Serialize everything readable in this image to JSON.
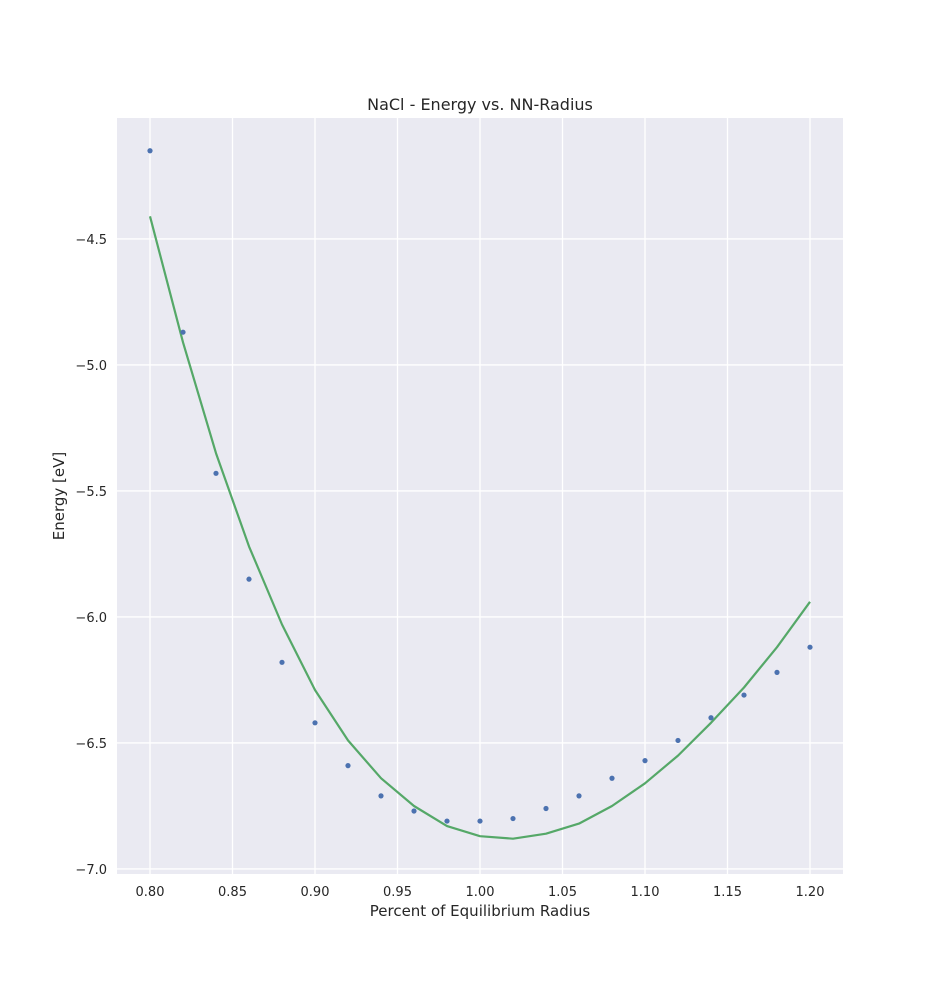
{
  "chart_data": {
    "type": "scatter",
    "title": "NaCl - Energy vs. NN-Radius",
    "xlabel": "Percent of Equilibrium Radius",
    "ylabel": "Energy [eV]",
    "xlim": [
      0.78,
      1.22
    ],
    "ylim": [
      -7.02,
      -4.02
    ],
    "xticks": [
      0.8,
      0.85,
      0.9,
      0.95,
      1.0,
      1.05,
      1.1,
      1.15,
      1.2
    ],
    "xtick_labels": [
      "0.80",
      "0.85",
      "0.90",
      "0.95",
      "1.00",
      "1.05",
      "1.10",
      "1.15",
      "1.20"
    ],
    "yticks": [
      -7.0,
      -6.5,
      -6.0,
      -5.5,
      -5.0,
      -4.5
    ],
    "ytick_labels": [
      "−7.0",
      "−6.5",
      "−6.0",
      "−5.5",
      "−5.0",
      "−4.5"
    ],
    "grid": true,
    "background": "#eaeaf2",
    "series": [
      {
        "kind": "scatter",
        "color": "#4c72b0",
        "x": [
          0.8,
          0.82,
          0.84,
          0.86,
          0.88,
          0.9,
          0.92,
          0.94,
          0.96,
          0.98,
          1.0,
          1.02,
          1.04,
          1.06,
          1.08,
          1.1,
          1.12,
          1.14,
          1.16,
          1.18,
          1.2
        ],
        "y": [
          -4.15,
          -4.87,
          -5.43,
          -5.85,
          -6.18,
          -6.42,
          -6.59,
          -6.71,
          -6.77,
          -6.81,
          -6.81,
          -6.8,
          -6.76,
          -6.71,
          -6.64,
          -6.57,
          -6.49,
          -6.4,
          -6.31,
          -6.22,
          -6.12
        ]
      },
      {
        "kind": "line",
        "color": "#55a868",
        "x": [
          0.8,
          0.82,
          0.84,
          0.86,
          0.88,
          0.9,
          0.92,
          0.94,
          0.96,
          0.98,
          1.0,
          1.02,
          1.04,
          1.06,
          1.08,
          1.1,
          1.12,
          1.14,
          1.16,
          1.18,
          1.2
        ],
        "y": [
          -4.41,
          -4.91,
          -5.35,
          -5.72,
          -6.03,
          -6.29,
          -6.49,
          -6.64,
          -6.75,
          -6.83,
          -6.87,
          -6.88,
          -6.86,
          -6.82,
          -6.75,
          -6.66,
          -6.55,
          -6.42,
          -6.28,
          -6.12,
          -5.94
        ]
      }
    ]
  }
}
